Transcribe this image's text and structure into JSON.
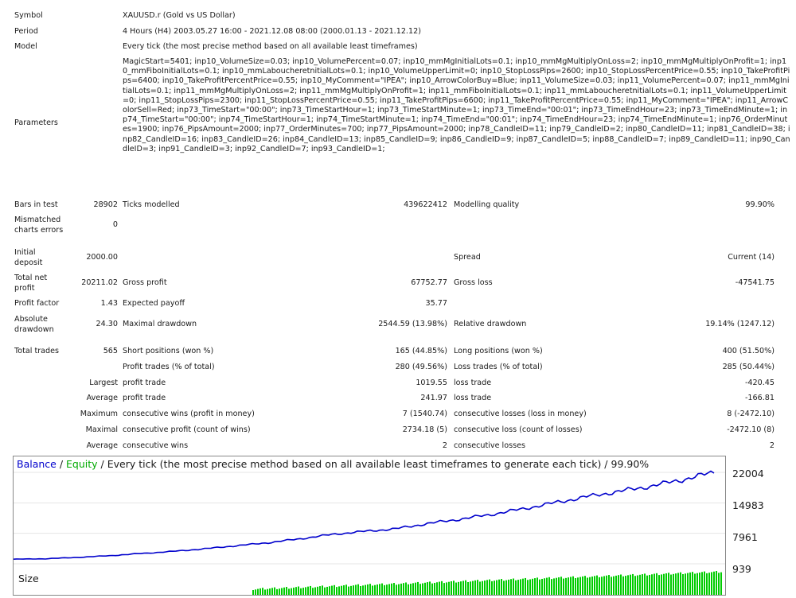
{
  "header": {
    "symbol_label": "Symbol",
    "symbol_value": "XAUUSD.r (Gold vs US Dollar)",
    "period_label": "Period",
    "period_value": "4 Hours (H4) 2003.05.27 16:00 - 2021.12.08 08:00 (2000.01.13 - 2021.12.12)",
    "model_label": "Model",
    "model_value": "Every tick (the most precise method based on all available least timeframes)",
    "parameters_label": "Parameters",
    "parameters_value": "MagicStart=5401; inp10_VolumeSize=0.03; inp10_VolumePercent=0.07; inp10_mmMgInitialLots=0.1; inp10_mmMgMultiplyOnLoss=2; inp10_mmMgMultiplyOnProfit=1; inp10_mmFiboInitialLots=0.1; inp10_mmLaboucheretnitialLots=0.1; inp10_VolumeUpperLimit=0; inp10_StopLossPips=2600; inp10_StopLossPercentPrice=0.55; inp10_TakeProfitPips=6400; inp10_TakeProfitPercentPrice=0.55; inp10_MyComment=\"IPEA\"; inp10_ArrowColorBuy=Blue; inp11_VolumeSize=0.03; inp11_VolumePercent=0.07; inp11_mmMgInitialLots=0.1; inp11_mmMgMultiplyOnLoss=2; inp11_mmMgMultiplyOnProfit=1; inp11_mmFiboInitialLots=0.1; inp11_mmLaboucheretnitialLots=0.1; inp11_VolumeUpperLimit=0; inp11_StopLossPips=2300; inp11_StopLossPercentPrice=0.55; inp11_TakeProfitPips=6600; inp11_TakeProfitPercentPrice=0.55; inp11_MyComment=\"IPEA\"; inp11_ArrowColorSell=Red; inp73_TimeStart=\"00:00\"; inp73_TimeStartHour=1; inp73_TimeStartMinute=1; inp73_TimeEnd=\"00:01\"; inp73_TimeEndHour=23; inp73_TimeEndMinute=1; inp74_TimeStart=\"00:00\"; inp74_TimeStartHour=1; inp74_TimeStartMinute=1; inp74_TimeEnd=\"00:01\"; inp74_TimeEndHour=23; inp74_TimeEndMinute=1; inp76_OrderMinutes=1900; inp76_PipsAmount=2000; inp77_OrderMinutes=700; inp77_PipsAmount=2000; inp78_CandleID=11; inp79_CandleID=2; inp80_CandleID=11; inp81_CandleID=38; inp82_CandleID=16; inp83_CandleID=26; inp84_CandleID=13; inp85_CandleID=9; inp86_CandleID=9; inp87_CandleID=5; inp88_CandleID=7; inp89_CandleID=11; inp90_CandleID=3; inp91_CandleID=3; inp92_CandleID=7; inp93_CandleID=1;"
  },
  "stats": {
    "bars_label": "Bars in test",
    "bars_value": "28902",
    "ticks_label": "Ticks modelled",
    "ticks_value": "439622412",
    "quality_label": "Modelling quality",
    "quality_value": "99.90%",
    "mismatch_label_1": "Mismatched",
    "mismatch_label_2": "charts errors",
    "mismatch_value": "0",
    "deposit_label_1": "Initial",
    "deposit_label_2": "deposit",
    "deposit_value": "2000.00",
    "spread_label": "Spread",
    "spread_value": "Current (14)",
    "net_label_1": "Total net",
    "net_label_2": "profit",
    "net_value": "20211.02",
    "gross_profit_label": "Gross profit",
    "gross_profit_value": "67752.77",
    "gross_loss_label": "Gross loss",
    "gross_loss_value": "-47541.75",
    "pf_label": "Profit factor",
    "pf_value": "1.43",
    "payoff_label": "Expected payoff",
    "payoff_value": "35.77",
    "absdd_label_1": "Absolute",
    "absdd_label_2": "drawdown",
    "absdd_value": "24.30",
    "maxdd_label": "Maximal drawdown",
    "maxdd_value": "2544.59 (13.98%)",
    "reldd_label": "Relative drawdown",
    "reldd_value": "19.14% (1247.12)",
    "trades_label": "Total trades",
    "trades_value": "565",
    "short_label": "Short positions (won %)",
    "short_value": "165 (44.85%)",
    "long_label": "Long positions (won %)",
    "long_value": "400 (51.50%)",
    "profit_trades_label": "Profit trades (% of total)",
    "profit_trades_value": "280 (49.56%)",
    "loss_trades_label": "Loss trades (% of total)",
    "loss_trades_value": "285 (50.44%)",
    "largest_label": "Largest",
    "largest_profit_label": "profit trade",
    "largest_profit_value": "1019.55",
    "largest_loss_label": "loss trade",
    "largest_loss_value": "-420.45",
    "average_label": "Average",
    "average_profit_label": "profit trade",
    "average_profit_value": "241.97",
    "average_loss_label": "loss trade",
    "average_loss_value": "-166.81",
    "maximum_label": "Maximum",
    "max_wins_label": "consecutive wins (profit in money)",
    "max_wins_value": "7 (1540.74)",
    "max_losses_label": "consecutive losses (loss in money)",
    "max_losses_value": "8 (-2472.10)",
    "maximal_label": "Maximal",
    "maximal_profit_label": "consecutive profit (count of wins)",
    "maximal_profit_value": "2734.18 (5)",
    "maximal_loss_label": "consecutive loss (count of losses)",
    "maximal_loss_value": "-2472.10 (8)",
    "avg_consec_label": "Average",
    "avg_wins_label": "consecutive wins",
    "avg_wins_value": "2",
    "avg_losses_label": "consecutive losses",
    "avg_losses_value": "2"
  },
  "chart": {
    "balance_label": "Balance",
    "slash": " / ",
    "equity_label": "Equity",
    "title_rest": " / Every tick (the most precise method based on all available least timeframes to generate each tick) / 99.90%",
    "size_label": "Size",
    "y_ticks": [
      "22004",
      "14983",
      "7961",
      "939"
    ],
    "balance_color": "#0000cc",
    "equity_color": "#00aa00",
    "size_bar_color": "#00cc00"
  },
  "chart_data": {
    "type": "line",
    "title": "Balance / Equity / Every tick (the most precise method based on all available least timeframes to generate each tick) / 99.90%",
    "ylim": [
      939,
      22004
    ],
    "series": [
      {
        "name": "Balance",
        "x": [
          0,
          25,
          50,
          75,
          100,
          125,
          150,
          175,
          200,
          225,
          250,
          275,
          300,
          325,
          350,
          375,
          400,
          425,
          450,
          475,
          500,
          525,
          550
        ],
        "values": [
          2000,
          2100,
          2400,
          2800,
          3300,
          3800,
          4400,
          5100,
          5800,
          6700,
          7700,
          8400,
          9000,
          10200,
          11200,
          12300,
          13600,
          15000,
          16400,
          17600,
          18800,
          20300,
          22004
        ]
      }
    ]
  }
}
